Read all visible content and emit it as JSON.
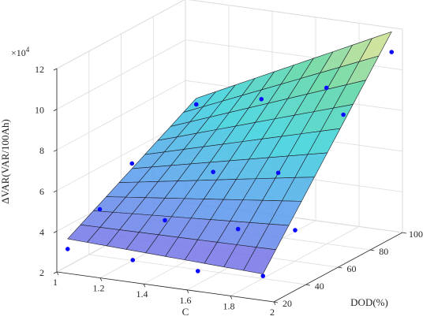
{
  "chart_data": {
    "type": "surface3d",
    "xlabel": "C",
    "ylabel": "DOD(%)",
    "zlabel": "ΔVAR(VAR/100Ah)",
    "z_exponent_label": "×10",
    "z_exponent_power": "4",
    "xlim": [
      1,
      2
    ],
    "ylim": [
      20,
      100
    ],
    "zlim": [
      20000,
      120000
    ],
    "x_ticks": [
      "1",
      "1.2",
      "1.4",
      "1.6",
      "1.8",
      "2"
    ],
    "y_ticks": [
      "20",
      "40",
      "60",
      "80",
      "100"
    ],
    "z_ticks": [
      "2",
      "4",
      "6",
      "8",
      "10",
      "12"
    ],
    "grid": true,
    "colormap": [
      "#7f6ee6",
      "#5a9fee",
      "#3cd2dc",
      "#5fd6a0",
      "#f4e48a"
    ],
    "surface": {
      "x_range": [
        1.05,
        1.95
      ],
      "y_range": [
        20,
        100
      ],
      "z_corners": {
        "x_min_y_min": 37000,
        "x_max_y_min": 33000,
        "x_min_y_max": 72000,
        "x_max_y_max": 118000
      },
      "nx": 10,
      "ny": 10
    },
    "points": [
      {
        "x": 1.05,
        "y": 20,
        "z": 32000
      },
      {
        "x": 1.05,
        "y": 40,
        "z": 43000
      },
      {
        "x": 1.05,
        "y": 60,
        "z": 57000
      },
      {
        "x": 1.05,
        "y": 100,
        "z": 69000
      },
      {
        "x": 1.35,
        "y": 20,
        "z": 31000
      },
      {
        "x": 1.35,
        "y": 40,
        "z": 42000
      },
      {
        "x": 1.35,
        "y": 70,
        "z": 53000
      },
      {
        "x": 1.35,
        "y": 100,
        "z": 76000
      },
      {
        "x": 1.65,
        "y": 20,
        "z": 30000
      },
      {
        "x": 1.65,
        "y": 45,
        "z": 40000
      },
      {
        "x": 1.65,
        "y": 70,
        "z": 57000
      },
      {
        "x": 1.65,
        "y": 100,
        "z": 86000
      },
      {
        "x": 1.95,
        "y": 20,
        "z": 32000
      },
      {
        "x": 1.95,
        "y": 40,
        "z": 46000
      },
      {
        "x": 1.95,
        "y": 70,
        "z": 90000
      },
      {
        "x": 1.95,
        "y": 100,
        "z": 108000
      }
    ]
  }
}
